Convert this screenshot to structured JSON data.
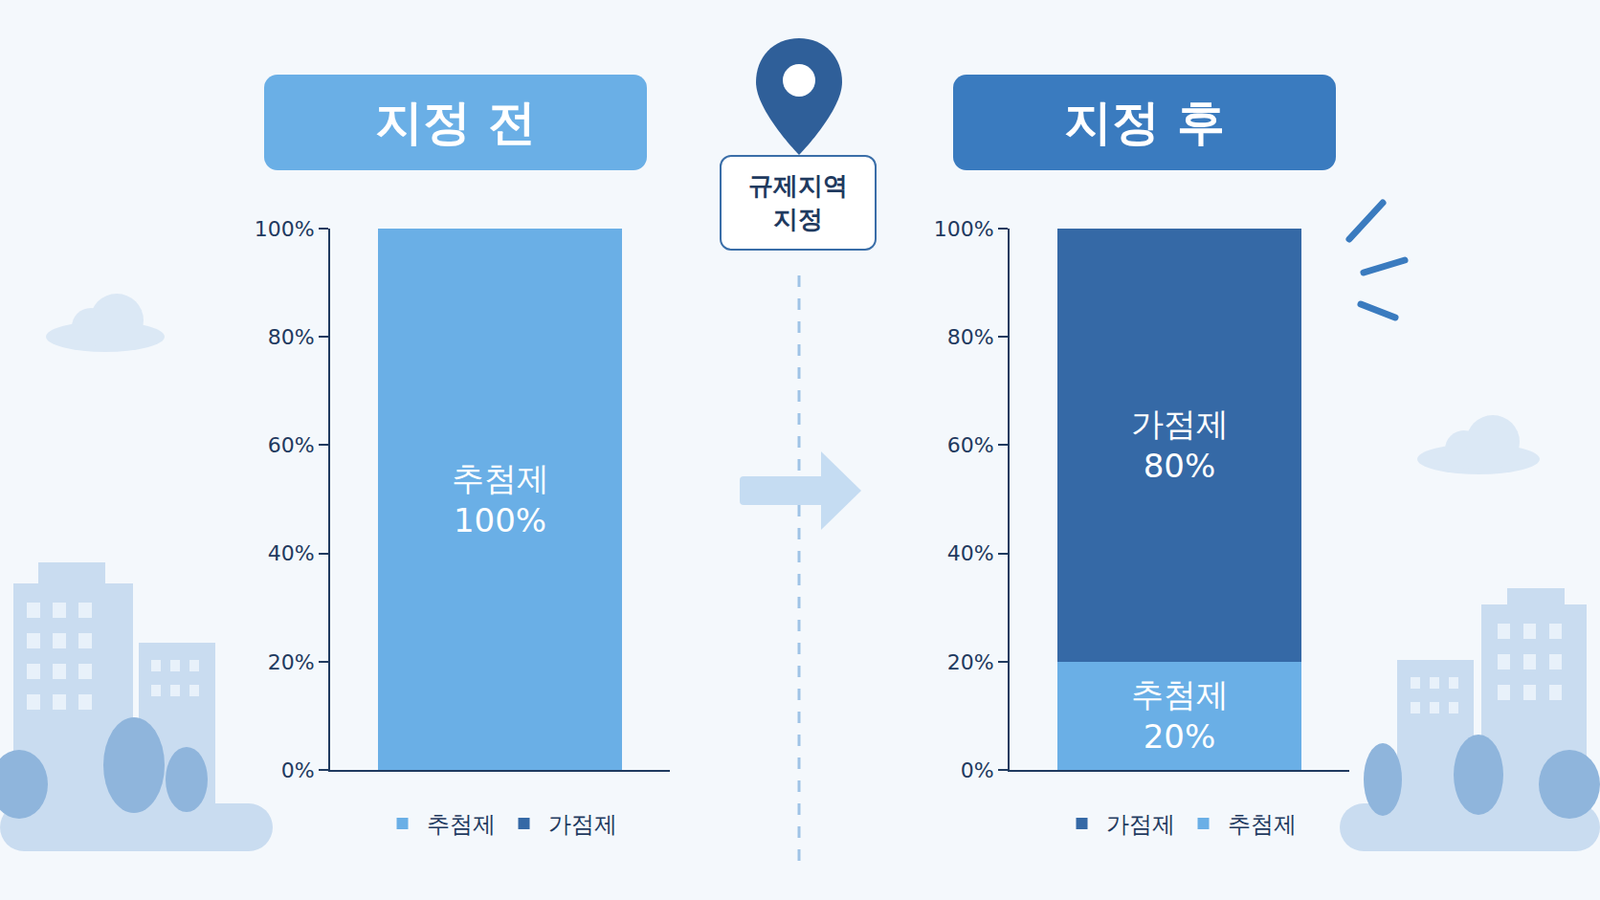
{
  "annotations": [
    "규제지역 지정"
  ],
  "chart_data": [
    {
      "type": "bar",
      "title": "지정 전",
      "stacked": true,
      "data_labels": true,
      "legend": "bottom",
      "categories": [
        null
      ],
      "ylim": [
        0,
        100
      ],
      "yticks": [
        {
          "value": 0,
          "label": "0%"
        },
        {
          "value": 20,
          "label": "20%"
        },
        {
          "value": 40,
          "label": "40%"
        },
        {
          "value": 60,
          "label": "60%"
        },
        {
          "value": 80,
          "label": "80%"
        },
        {
          "value": 100,
          "label": "100%"
        }
      ],
      "series": [
        {
          "name": "추첨제",
          "color": "#6aafe6",
          "values": [
            100
          ],
          "value_labels": [
            "100%"
          ]
        },
        {
          "name": "가점제",
          "color": "#3569a6",
          "values": [
            0
          ],
          "value_labels": [
            null
          ]
        }
      ]
    },
    {
      "type": "bar",
      "title": "지정 후",
      "stacked": true,
      "data_labels": true,
      "legend": "bottom",
      "categories": [
        null
      ],
      "ylim": [
        0,
        100
      ],
      "yticks": [
        {
          "value": 0,
          "label": "0%"
        },
        {
          "value": 20,
          "label": "20%"
        },
        {
          "value": 40,
          "label": "40%"
        },
        {
          "value": 60,
          "label": "60%"
        },
        {
          "value": 80,
          "label": "80%"
        },
        {
          "value": 100,
          "label": "100%"
        }
      ],
      "series": [
        {
          "name": "가점제",
          "color": "#3569a6",
          "values": [
            80
          ],
          "value_labels": [
            "80%"
          ]
        },
        {
          "name": "추첨제",
          "color": "#6aafe6",
          "values": [
            20
          ],
          "value_labels": [
            "20%"
          ]
        }
      ]
    }
  ]
}
